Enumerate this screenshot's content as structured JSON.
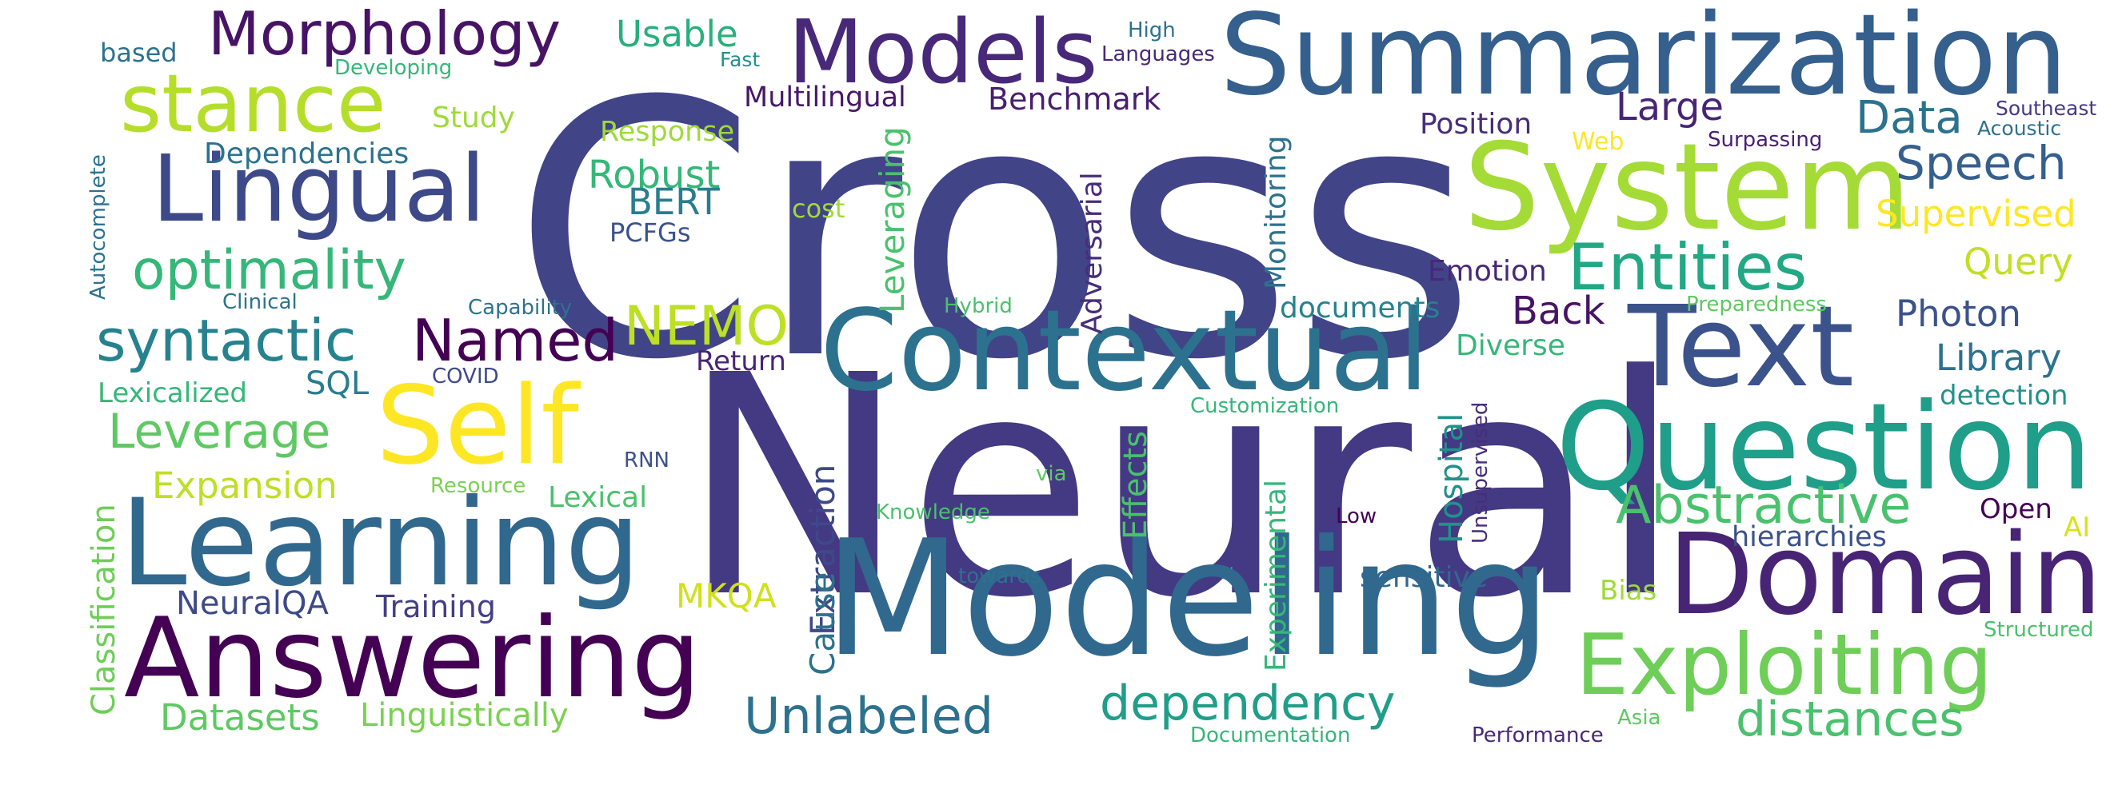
{
  "words": [
    {
      "text": "Cross",
      "color": "#414487"
    },
    {
      "text": "Neural",
      "color": "#443983"
    },
    {
      "text": "Modeling",
      "color": "#31688e"
    },
    {
      "text": "Summarization",
      "color": "#355f8d"
    },
    {
      "text": "Contextual",
      "color": "#2c728e"
    },
    {
      "text": "System",
      "color": "#a5db36"
    },
    {
      "text": "Text",
      "color": "#3b528b"
    },
    {
      "text": "Question",
      "color": "#1f9e89"
    },
    {
      "text": "Domain",
      "color": "#482475"
    },
    {
      "text": "Exploiting",
      "color": "#6ece58"
    },
    {
      "text": "Learning",
      "color": "#31688e"
    },
    {
      "text": "Answering",
      "color": "#440154"
    },
    {
      "text": "Lingual",
      "color": "#3e4989"
    },
    {
      "text": "Self",
      "color": "#fde725"
    },
    {
      "text": "Models",
      "color": "#482878"
    },
    {
      "text": "stance",
      "color": "#b5de2b"
    },
    {
      "text": "Morphology",
      "color": "#471365"
    },
    {
      "text": "Named",
      "color": "#440154"
    },
    {
      "text": "syntactic",
      "color": "#26828e"
    },
    {
      "text": "optimality",
      "color": "#35b779"
    },
    {
      "text": "Entities",
      "color": "#22a884"
    },
    {
      "text": "Abstractive",
      "color": "#4ac16d"
    },
    {
      "text": "dependency",
      "color": "#1f9e89"
    },
    {
      "text": "distances",
      "color": "#4ac16d"
    },
    {
      "text": "Unlabeled",
      "color": "#2c728e"
    },
    {
      "text": "NEMO",
      "color": "#bddf26"
    },
    {
      "text": "Leverage",
      "color": "#5ec962"
    },
    {
      "text": "Expansion",
      "color": "#bddf26"
    },
    {
      "text": "Speech",
      "color": "#355f8d"
    },
    {
      "text": "Data",
      "color": "#2c728e"
    },
    {
      "text": "Large",
      "color": "#482475"
    },
    {
      "text": "Supervised",
      "color": "#fde725"
    },
    {
      "text": "Query",
      "color": "#c2df23"
    },
    {
      "text": "Photon",
      "color": "#3b528b"
    },
    {
      "text": "Library",
      "color": "#2c728e"
    },
    {
      "text": "Back",
      "color": "#471365"
    },
    {
      "text": "Robust",
      "color": "#35b779"
    },
    {
      "text": "BERT",
      "color": "#287d8e"
    },
    {
      "text": "Datasets",
      "color": "#5ec962"
    },
    {
      "text": "Linguistically",
      "color": "#7ad151"
    },
    {
      "text": "NeuralQA",
      "color": "#3e4989"
    },
    {
      "text": "Training",
      "color": "#433e85"
    },
    {
      "text": "MKQA",
      "color": "#d0e11c"
    },
    {
      "text": "Benchmark",
      "color": "#481f70"
    },
    {
      "text": "Multilingual",
      "color": "#481769"
    },
    {
      "text": "Usable",
      "color": "#29af7f"
    },
    {
      "text": "Dependencies",
      "color": "#2c728e"
    },
    {
      "text": "Study",
      "color": "#9fda3a"
    },
    {
      "text": "Response",
      "color": "#9fda3a"
    },
    {
      "text": "Position",
      "color": "#472d7b"
    },
    {
      "text": "Emotion",
      "color": "#482878"
    },
    {
      "text": "documents",
      "color": "#26828e"
    },
    {
      "text": "Diverse",
      "color": "#35b779"
    },
    {
      "text": "Return",
      "color": "#482475"
    },
    {
      "text": "SQL",
      "color": "#287d8e"
    },
    {
      "text": "Lexicalized",
      "color": "#35b779"
    },
    {
      "text": "Lexical",
      "color": "#4ac16d"
    },
    {
      "text": "sensitive",
      "color": "#31688e"
    },
    {
      "text": "hierarchies",
      "color": "#3b528b"
    },
    {
      "text": "Open",
      "color": "#440154"
    },
    {
      "text": "AI",
      "color": "#d8e219"
    },
    {
      "text": "Bias",
      "color": "#a0da39"
    },
    {
      "text": "detection",
      "color": "#21918c"
    },
    {
      "text": "based",
      "color": "#2c728e"
    },
    {
      "text": "PCFGs",
      "color": "#3b528b"
    },
    {
      "text": "cost",
      "color": "#a0da39"
    },
    {
      "text": "Web",
      "color": "#fde725"
    },
    {
      "text": "Surpassing",
      "color": "#481f70"
    },
    {
      "text": "Southeast",
      "color": "#443983"
    },
    {
      "text": "Acoustic",
      "color": "#2d708e"
    },
    {
      "text": "High",
      "color": "#2c728e"
    },
    {
      "text": "Languages",
      "color": "#482878"
    },
    {
      "text": "Fast",
      "color": "#21918c"
    },
    {
      "text": "Developing",
      "color": "#35b779"
    },
    {
      "text": "Clinical",
      "color": "#2c728e"
    },
    {
      "text": "Capability",
      "color": "#2c728e"
    },
    {
      "text": "COVID",
      "color": "#3e4989"
    },
    {
      "text": "Hybrid",
      "color": "#4ac16d"
    },
    {
      "text": "Preparedness",
      "color": "#5ec962"
    },
    {
      "text": "Customization",
      "color": "#35b779"
    },
    {
      "text": "RNN",
      "color": "#3b528b"
    },
    {
      "text": "Resource",
      "color": "#7ad151"
    },
    {
      "text": "via",
      "color": "#5ec962"
    },
    {
      "text": "Knowledge",
      "color": "#4ac16d"
    },
    {
      "text": "towards",
      "color": "#2c728e"
    },
    {
      "text": "Low",
      "color": "#440154"
    },
    {
      "text": "Structured",
      "color": "#4ac16d"
    },
    {
      "text": "Documentation",
      "color": "#35b779"
    },
    {
      "text": "Performance",
      "color": "#482878"
    },
    {
      "text": "Asia",
      "color": "#5ec962"
    },
    {
      "text": "Classification",
      "color": "#6ece58"
    },
    {
      "text": "Autocomplete",
      "color": "#2c728e"
    },
    {
      "text": "Extraction",
      "color": "#3e4989"
    },
    {
      "text": "Cause",
      "color": "#2c728e"
    },
    {
      "text": "Leveraging",
      "color": "#4ac16d"
    },
    {
      "text": "Adversarial",
      "color": "#472d7b"
    },
    {
      "text": "Monitoring",
      "color": "#2c728e"
    },
    {
      "text": "Effects",
      "color": "#4ac16d"
    },
    {
      "text": "Experimental",
      "color": "#35b779"
    },
    {
      "text": "Hospital",
      "color": "#21918c"
    },
    {
      "text": "Unsupervised",
      "color": "#472d7b"
    }
  ]
}
